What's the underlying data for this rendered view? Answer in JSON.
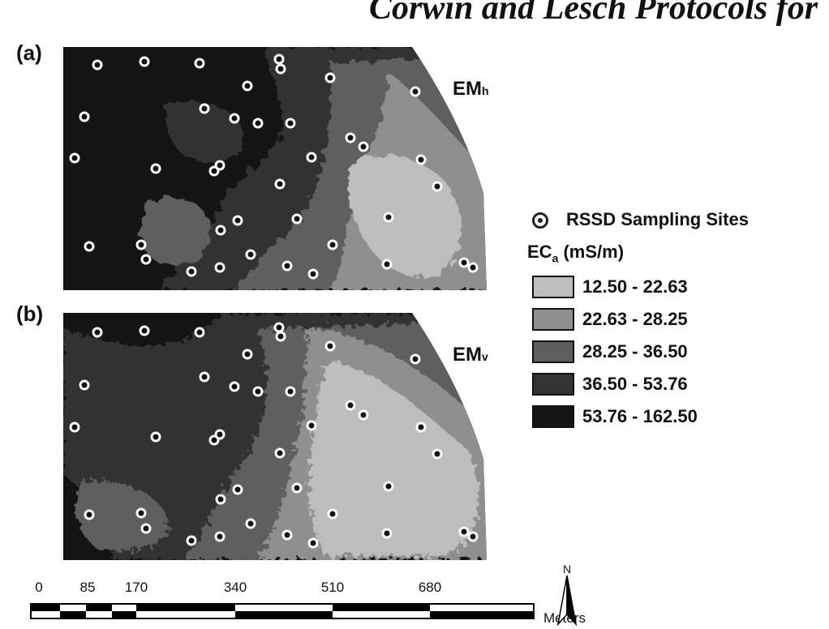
{
  "header": {
    "title": "Corwin and Lesch Protocols for"
  },
  "panels": [
    {
      "label": "(a)",
      "title_main": "EM",
      "title_sub": "h"
    },
    {
      "label": "(b)",
      "title_main": "EM",
      "title_sub": "v"
    }
  ],
  "legend": {
    "sites_label": "RSSD Sampling Sites",
    "unit_main": "EC",
    "unit_sub": "a",
    "unit_rest": " (mS/m)",
    "classes": [
      {
        "range": "12.50 - 22.63",
        "color": "#bdbdbd"
      },
      {
        "range": "22.63 - 28.25",
        "color": "#8f8f8f"
      },
      {
        "range": "28.25 - 36.50",
        "color": "#5e5e5e"
      },
      {
        "range": "36.50 - 53.76",
        "color": "#333333"
      },
      {
        "range": "53.76 - 162.50",
        "color": "#141414"
      }
    ]
  },
  "scalebar": {
    "ticks": [
      "0",
      "85",
      "170",
      "340",
      "510",
      "680"
    ],
    "unit": "Meters"
  },
  "north": {
    "label": "N"
  }
}
